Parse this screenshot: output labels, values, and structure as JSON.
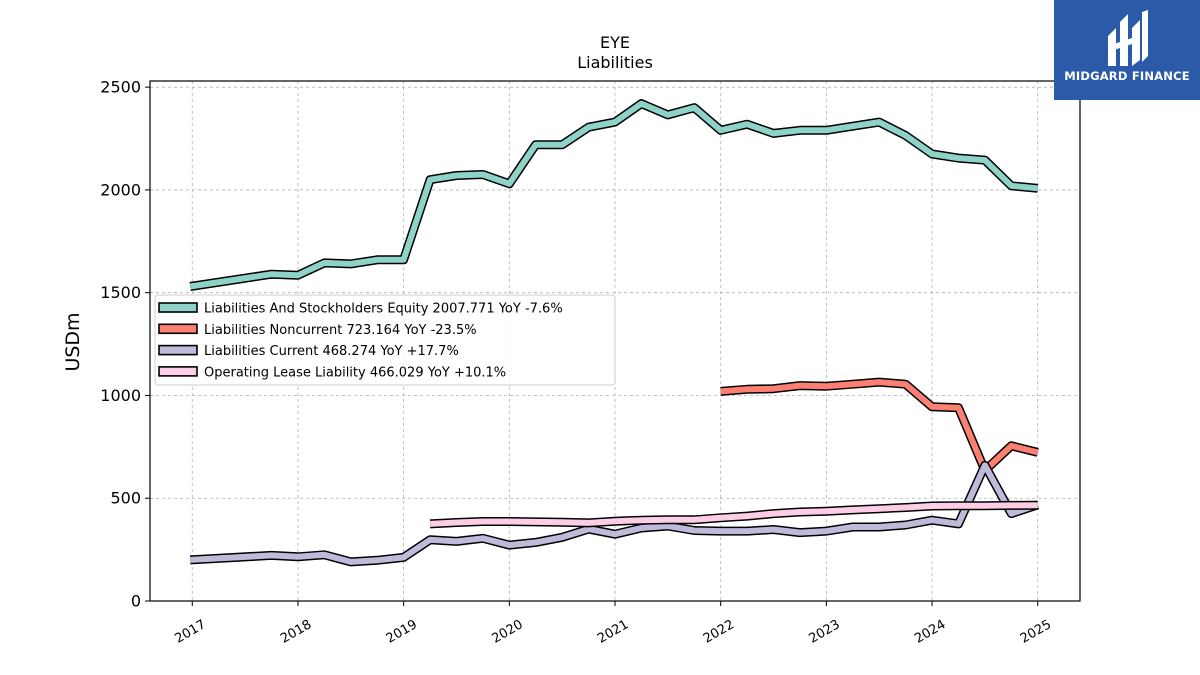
{
  "chart_data": {
    "type": "line",
    "title": "EYE",
    "subtitle": "Liabilities",
    "ylabel": "USDm",
    "ylim": [
      0,
      2530
    ],
    "yticks": [
      0,
      500,
      1000,
      1500,
      2000,
      2500
    ],
    "xlim": [
      2016.6,
      2025.4
    ],
    "xticks": [
      "2017",
      "2018",
      "2019",
      "2020",
      "2021",
      "2022",
      "2023",
      "2024",
      "2025"
    ],
    "grid": true,
    "legend_position": "center-left",
    "series": [
      {
        "name": "Liabilities And Stockholders Equity",
        "legend": "Liabilities And Stockholders Equity  2007.771 YoY -7.6%",
        "color": "#8dd3c7",
        "points": [
          [
            2016.98,
            1530
          ],
          [
            2017.75,
            1590
          ],
          [
            2018.0,
            1585
          ],
          [
            2018.25,
            1645
          ],
          [
            2018.5,
            1640
          ],
          [
            2018.75,
            1660
          ],
          [
            2019.0,
            1660
          ],
          [
            2019.25,
            2050
          ],
          [
            2019.5,
            2070
          ],
          [
            2019.75,
            2075
          ],
          [
            2020.0,
            2030
          ],
          [
            2020.25,
            2220
          ],
          [
            2020.5,
            2220
          ],
          [
            2020.75,
            2305
          ],
          [
            2021.0,
            2330
          ],
          [
            2021.25,
            2420
          ],
          [
            2021.5,
            2365
          ],
          [
            2021.75,
            2400
          ],
          [
            2022.0,
            2290
          ],
          [
            2022.25,
            2320
          ],
          [
            2022.5,
            2275
          ],
          [
            2022.75,
            2290
          ],
          [
            2023.0,
            2290
          ],
          [
            2023.25,
            2310
          ],
          [
            2023.5,
            2330
          ],
          [
            2023.75,
            2265
          ],
          [
            2024.0,
            2175
          ],
          [
            2024.25,
            2155
          ],
          [
            2024.5,
            2145
          ],
          [
            2024.75,
            2020
          ],
          [
            2025.0,
            2008
          ]
        ]
      },
      {
        "name": "Liabilities Noncurrent",
        "legend": "Liabilities Noncurrent  723.164 YoY -23.5%",
        "color": "#fb8072",
        "points": [
          [
            2022.0,
            1020
          ],
          [
            2022.25,
            1030
          ],
          [
            2022.5,
            1033
          ],
          [
            2022.75,
            1048
          ],
          [
            2023.0,
            1045
          ],
          [
            2023.25,
            1055
          ],
          [
            2023.5,
            1065
          ],
          [
            2023.75,
            1055
          ],
          [
            2024.0,
            945
          ],
          [
            2024.25,
            940
          ],
          [
            2024.5,
            635
          ],
          [
            2024.75,
            755
          ],
          [
            2025.0,
            723
          ]
        ]
      },
      {
        "name": "Liabilities Current",
        "legend": "Liabilities Current  468.274 YoY +17.7%",
        "color": "#bebada",
        "points": [
          [
            2016.98,
            200
          ],
          [
            2017.75,
            222
          ],
          [
            2018.0,
            215
          ],
          [
            2018.25,
            225
          ],
          [
            2018.5,
            190
          ],
          [
            2018.75,
            198
          ],
          [
            2019.0,
            212
          ],
          [
            2019.25,
            298
          ],
          [
            2019.5,
            290
          ],
          [
            2019.75,
            305
          ],
          [
            2020.0,
            272
          ],
          [
            2020.25,
            285
          ],
          [
            2020.5,
            310
          ],
          [
            2020.75,
            350
          ],
          [
            2021.0,
            325
          ],
          [
            2021.25,
            355
          ],
          [
            2021.5,
            365
          ],
          [
            2021.75,
            343
          ],
          [
            2022.0,
            340
          ],
          [
            2022.25,
            340
          ],
          [
            2022.5,
            348
          ],
          [
            2022.75,
            333
          ],
          [
            2023.0,
            340
          ],
          [
            2023.25,
            360
          ],
          [
            2023.5,
            360
          ],
          [
            2023.75,
            370
          ],
          [
            2024.0,
            393
          ],
          [
            2024.25,
            375
          ],
          [
            2024.5,
            660
          ],
          [
            2024.75,
            425
          ],
          [
            2025.0,
            468
          ]
        ]
      },
      {
        "name": "Operating Lease Liability",
        "legend": "Operating Lease Liability  466.029 YoY +10.1%",
        "color": "#fccde5",
        "points": [
          [
            2019.25,
            375
          ],
          [
            2019.5,
            382
          ],
          [
            2019.75,
            387
          ],
          [
            2020.0,
            387
          ],
          [
            2020.25,
            385
          ],
          [
            2020.5,
            383
          ],
          [
            2020.75,
            380
          ],
          [
            2021.0,
            388
          ],
          [
            2021.25,
            393
          ],
          [
            2021.5,
            395
          ],
          [
            2021.75,
            395
          ],
          [
            2022.0,
            405
          ],
          [
            2022.25,
            413
          ],
          [
            2022.5,
            425
          ],
          [
            2022.75,
            433
          ],
          [
            2023.0,
            437
          ],
          [
            2023.25,
            443
          ],
          [
            2023.5,
            449
          ],
          [
            2023.75,
            455
          ],
          [
            2024.0,
            462
          ],
          [
            2024.25,
            463
          ],
          [
            2024.5,
            463
          ],
          [
            2024.75,
            465
          ],
          [
            2025.0,
            466
          ]
        ]
      }
    ]
  },
  "logo": {
    "text": "MIDGARD FINANCE",
    "background": "#2b5aa8"
  }
}
